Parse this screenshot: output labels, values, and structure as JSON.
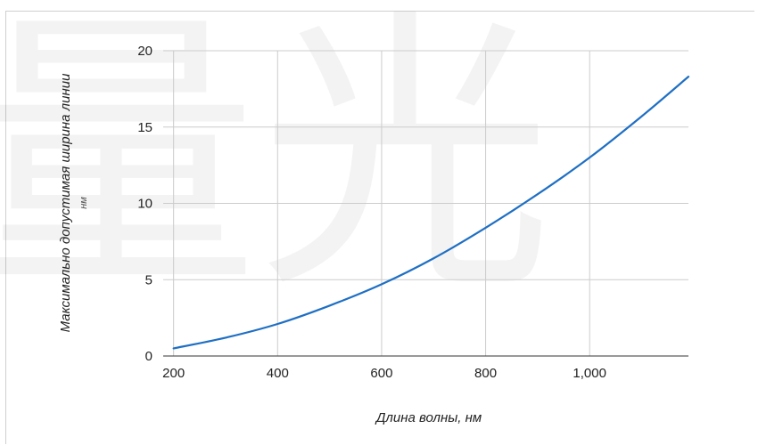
{
  "chart_data": {
    "type": "line",
    "title": "",
    "xlabel": "Длина волны, нм",
    "ylabel": "Максимально допустимая ширина линии",
    "ylabel_unit": "нм",
    "xlim": [
      180,
      1190
    ],
    "ylim": [
      0,
      20
    ],
    "x_ticks": [
      200,
      400,
      600,
      800,
      1000
    ],
    "x_tick_labels": [
      "200",
      "400",
      "600",
      "800",
      "1,000"
    ],
    "y_ticks": [
      0,
      5,
      10,
      15,
      20
    ],
    "y_tick_labels": [
      "0",
      "5",
      "10",
      "15",
      "20"
    ],
    "grid": true,
    "legend": "none",
    "series": [
      {
        "color": "#1f6fc4",
        "x": [
          200,
          300,
          400,
          500,
          600,
          700,
          800,
          900,
          1000,
          1100,
          1190
        ],
        "y": [
          0.5,
          1.2,
          2.1,
          3.3,
          4.7,
          6.4,
          8.4,
          10.6,
          13.0,
          15.7,
          18.3
        ]
      }
    ]
  },
  "watermark": {
    "text": "量光",
    "color": "#000000"
  }
}
